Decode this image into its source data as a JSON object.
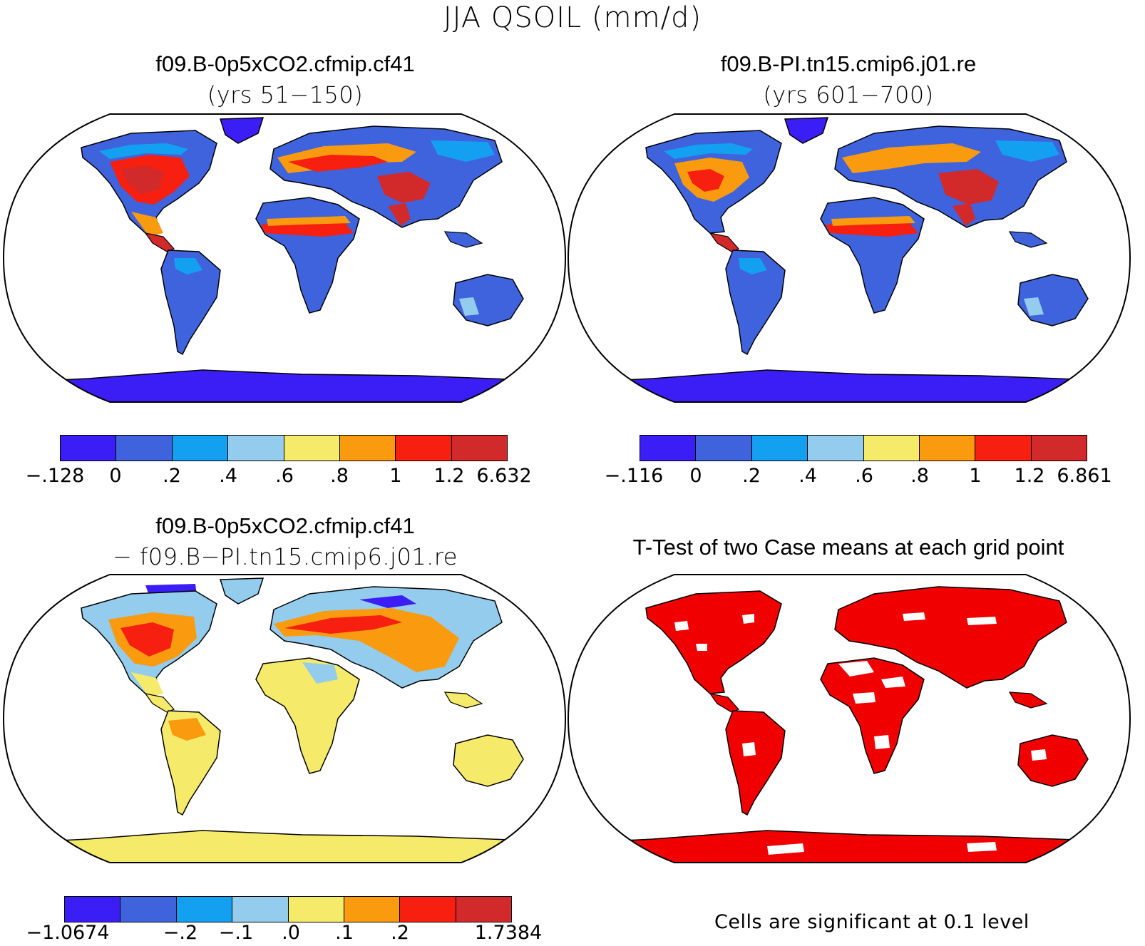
{
  "figure_title": "JJA QSOIL (mm/d)",
  "colors": {
    "bin1": "#3b1ef5",
    "bin2": "#3f63dd",
    "bin3": "#14a0f0",
    "bin4": "#94ccee",
    "bin5": "#f6ea6a",
    "bin6": "#fa9a0f",
    "bin7": "#f71f0f",
    "bin8": "#d22a2a",
    "significant": "#f00000",
    "land_outline": "#000000"
  },
  "panels": [
    {
      "title": "f09.B-0p5xCO2.cfmip.cf41",
      "subtitle": "(yrs 51−150)",
      "colorbar_labels": [
        "−.128",
        "0",
        ".2",
        ".4",
        ".6",
        ".8",
        "1",
        "1.2",
        "6.632"
      ]
    },
    {
      "title": "f09.B-PI.tn15.cmip6.j01.re",
      "subtitle": "(yrs 601−700)",
      "colorbar_labels": [
        "−.116",
        "0",
        ".2",
        ".4",
        ".6",
        ".8",
        "1",
        "1.2",
        "6.861"
      ]
    },
    {
      "title": "f09.B-0p5xCO2.cfmip.cf41",
      "subtitle": "− f09.B−PI.tn15.cmip6.j01.re",
      "colorbar_labels": [
        "−1.0674",
        "−.2",
        "−.1",
        ".0",
        ".1",
        ".2",
        "1.7384"
      ]
    },
    {
      "title": "T-Test of two Case means at each grid point",
      "footnote": "Cells are significant at 0.1 level"
    }
  ]
}
